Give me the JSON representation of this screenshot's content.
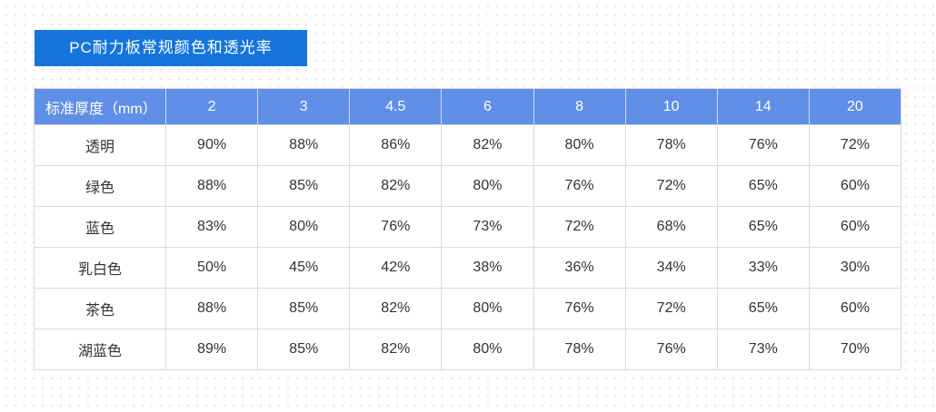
{
  "colors": {
    "banner_blue": "#1575DC",
    "header_blue": "#608FE8",
    "border": "#D9D9D9",
    "cell_text": "#333333",
    "dot": "#E8E8E8"
  },
  "banner": {
    "title": "PC耐力板常规颜色和透光率"
  },
  "table": {
    "corner_header": "标准厚度（mm）",
    "thickness_headers": [
      "2",
      "3",
      "4.5",
      "6",
      "8",
      "10",
      "14",
      "20"
    ],
    "rows": [
      {
        "label": "透明",
        "values": [
          "90%",
          "88%",
          "86%",
          "82%",
          "80%",
          "78%",
          "76%",
          "72%"
        ]
      },
      {
        "label": "绿色",
        "values": [
          "88%",
          "85%",
          "82%",
          "80%",
          "76%",
          "72%",
          "65%",
          "60%"
        ]
      },
      {
        "label": "蓝色",
        "values": [
          "83%",
          "80%",
          "76%",
          "73%",
          "72%",
          "68%",
          "65%",
          "60%"
        ]
      },
      {
        "label": "乳白色",
        "values": [
          "50%",
          "45%",
          "42%",
          "38%",
          "36%",
          "34%",
          "33%",
          "30%"
        ]
      },
      {
        "label": "茶色",
        "values": [
          "88%",
          "85%",
          "82%",
          "80%",
          "76%",
          "72%",
          "65%",
          "60%"
        ]
      },
      {
        "label": "湖蓝色",
        "values": [
          "89%",
          "85%",
          "82%",
          "80%",
          "78%",
          "76%",
          "73%",
          "70%"
        ]
      }
    ]
  }
}
